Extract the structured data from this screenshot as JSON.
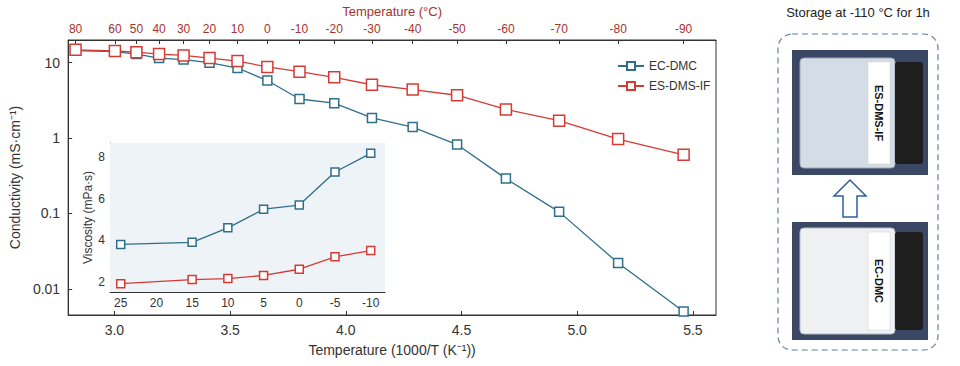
{
  "chart_data": [
    {
      "type": "line",
      "x_label": "Temperature (1000/T (K⁻¹))",
      "y_label": "Conductivity (mS·cm⁻¹)",
      "x2_label": "Temperature (°C)",
      "log": "y",
      "grid": false,
      "legend": "upper right",
      "marker": "square",
      "x": [
        2.832,
        3.002,
        3.095,
        3.193,
        3.299,
        3.411,
        3.532,
        3.661,
        3.8,
        3.95,
        4.113,
        4.289,
        4.481,
        4.692,
        4.922,
        5.177,
        5.46
      ],
      "series": [
        {
          "name": "EC-DMC",
          "color": "#2f6f89",
          "values": [
            14.5,
            14,
            13,
            11.5,
            11,
            10,
            8.5,
            5.8,
            3.3,
            2.9,
            1.85,
            1.4,
            0.82,
            0.29,
            0.105,
            0.022,
            0.005
          ]
        },
        {
          "name": "ES-DMS-IF",
          "color": "#d63a35",
          "values": [
            14.8,
            14.3,
            13.8,
            13,
            12.5,
            11.5,
            10.5,
            8.8,
            7.6,
            6.4,
            5.1,
            4.4,
            3.7,
            2.4,
            1.7,
            0.97,
            0.6
          ]
        }
      ],
      "xlim": [
        2.8,
        5.6
      ],
      "xticks": [
        {
          "value": 3,
          "label": "3.0"
        },
        3.5,
        {
          "value": 4,
          "label": "4.0"
        },
        4.5,
        {
          "value": 5,
          "label": "5.0"
        },
        5.5
      ],
      "ylim": [
        0.0045,
        20
      ],
      "yticks": [
        0.01,
        0.1,
        1,
        10
      ],
      "x2lim": [
        2.8,
        5.6
      ],
      "x2ticks": [
        {
          "value": 2.832,
          "label": "80"
        },
        {
          "value": 3.002,
          "label": "60"
        },
        {
          "value": 3.095,
          "label": "50"
        },
        {
          "value": 3.193,
          "label": "40"
        },
        {
          "value": 3.299,
          "label": "30"
        },
        {
          "value": 3.411,
          "label": "20"
        },
        {
          "value": 3.532,
          "label": "10"
        },
        {
          "value": 3.661,
          "label": "0"
        },
        {
          "value": 3.8,
          "label": "-10"
        },
        {
          "value": 3.95,
          "label": "-20"
        },
        {
          "value": 4.113,
          "label": "-30"
        },
        {
          "value": 4.289,
          "label": "-40"
        },
        {
          "value": 4.481,
          "label": "-50"
        },
        {
          "value": 4.692,
          "label": "-60"
        },
        {
          "value": 4.922,
          "label": "-70"
        },
        {
          "value": 5.177,
          "label": "-80"
        },
        {
          "value": 5.46,
          "label": "-90"
        }
      ]
    },
    {
      "type": "line",
      "y_label": "Viscosity (mPa·s)",
      "grid": false,
      "marker": "square",
      "x": [
        25,
        15,
        10,
        5,
        0,
        -5,
        -10
      ],
      "series": [
        {
          "color": "#2f6f89",
          "values": [
            3.8,
            3.9,
            4.6,
            5.5,
            5.7,
            7.3,
            8.2
          ]
        },
        {
          "color": "#d63a35",
          "values": [
            1.9,
            2.1,
            2.15,
            2.3,
            2.6,
            3.2,
            3.5
          ]
        }
      ],
      "xlim": [
        26.5,
        -12
      ],
      "xticks": [
        25,
        20,
        15,
        10,
        5,
        0,
        -5,
        -10
      ],
      "ylim": [
        1.5,
        8.7
      ],
      "yticks": [
        2,
        4,
        6,
        8
      ]
    }
  ],
  "panel": {
    "title": "Storage at -110 °C for 1h",
    "vials": [
      "ES-DMS-IF",
      "EC-DMC"
    ]
  }
}
